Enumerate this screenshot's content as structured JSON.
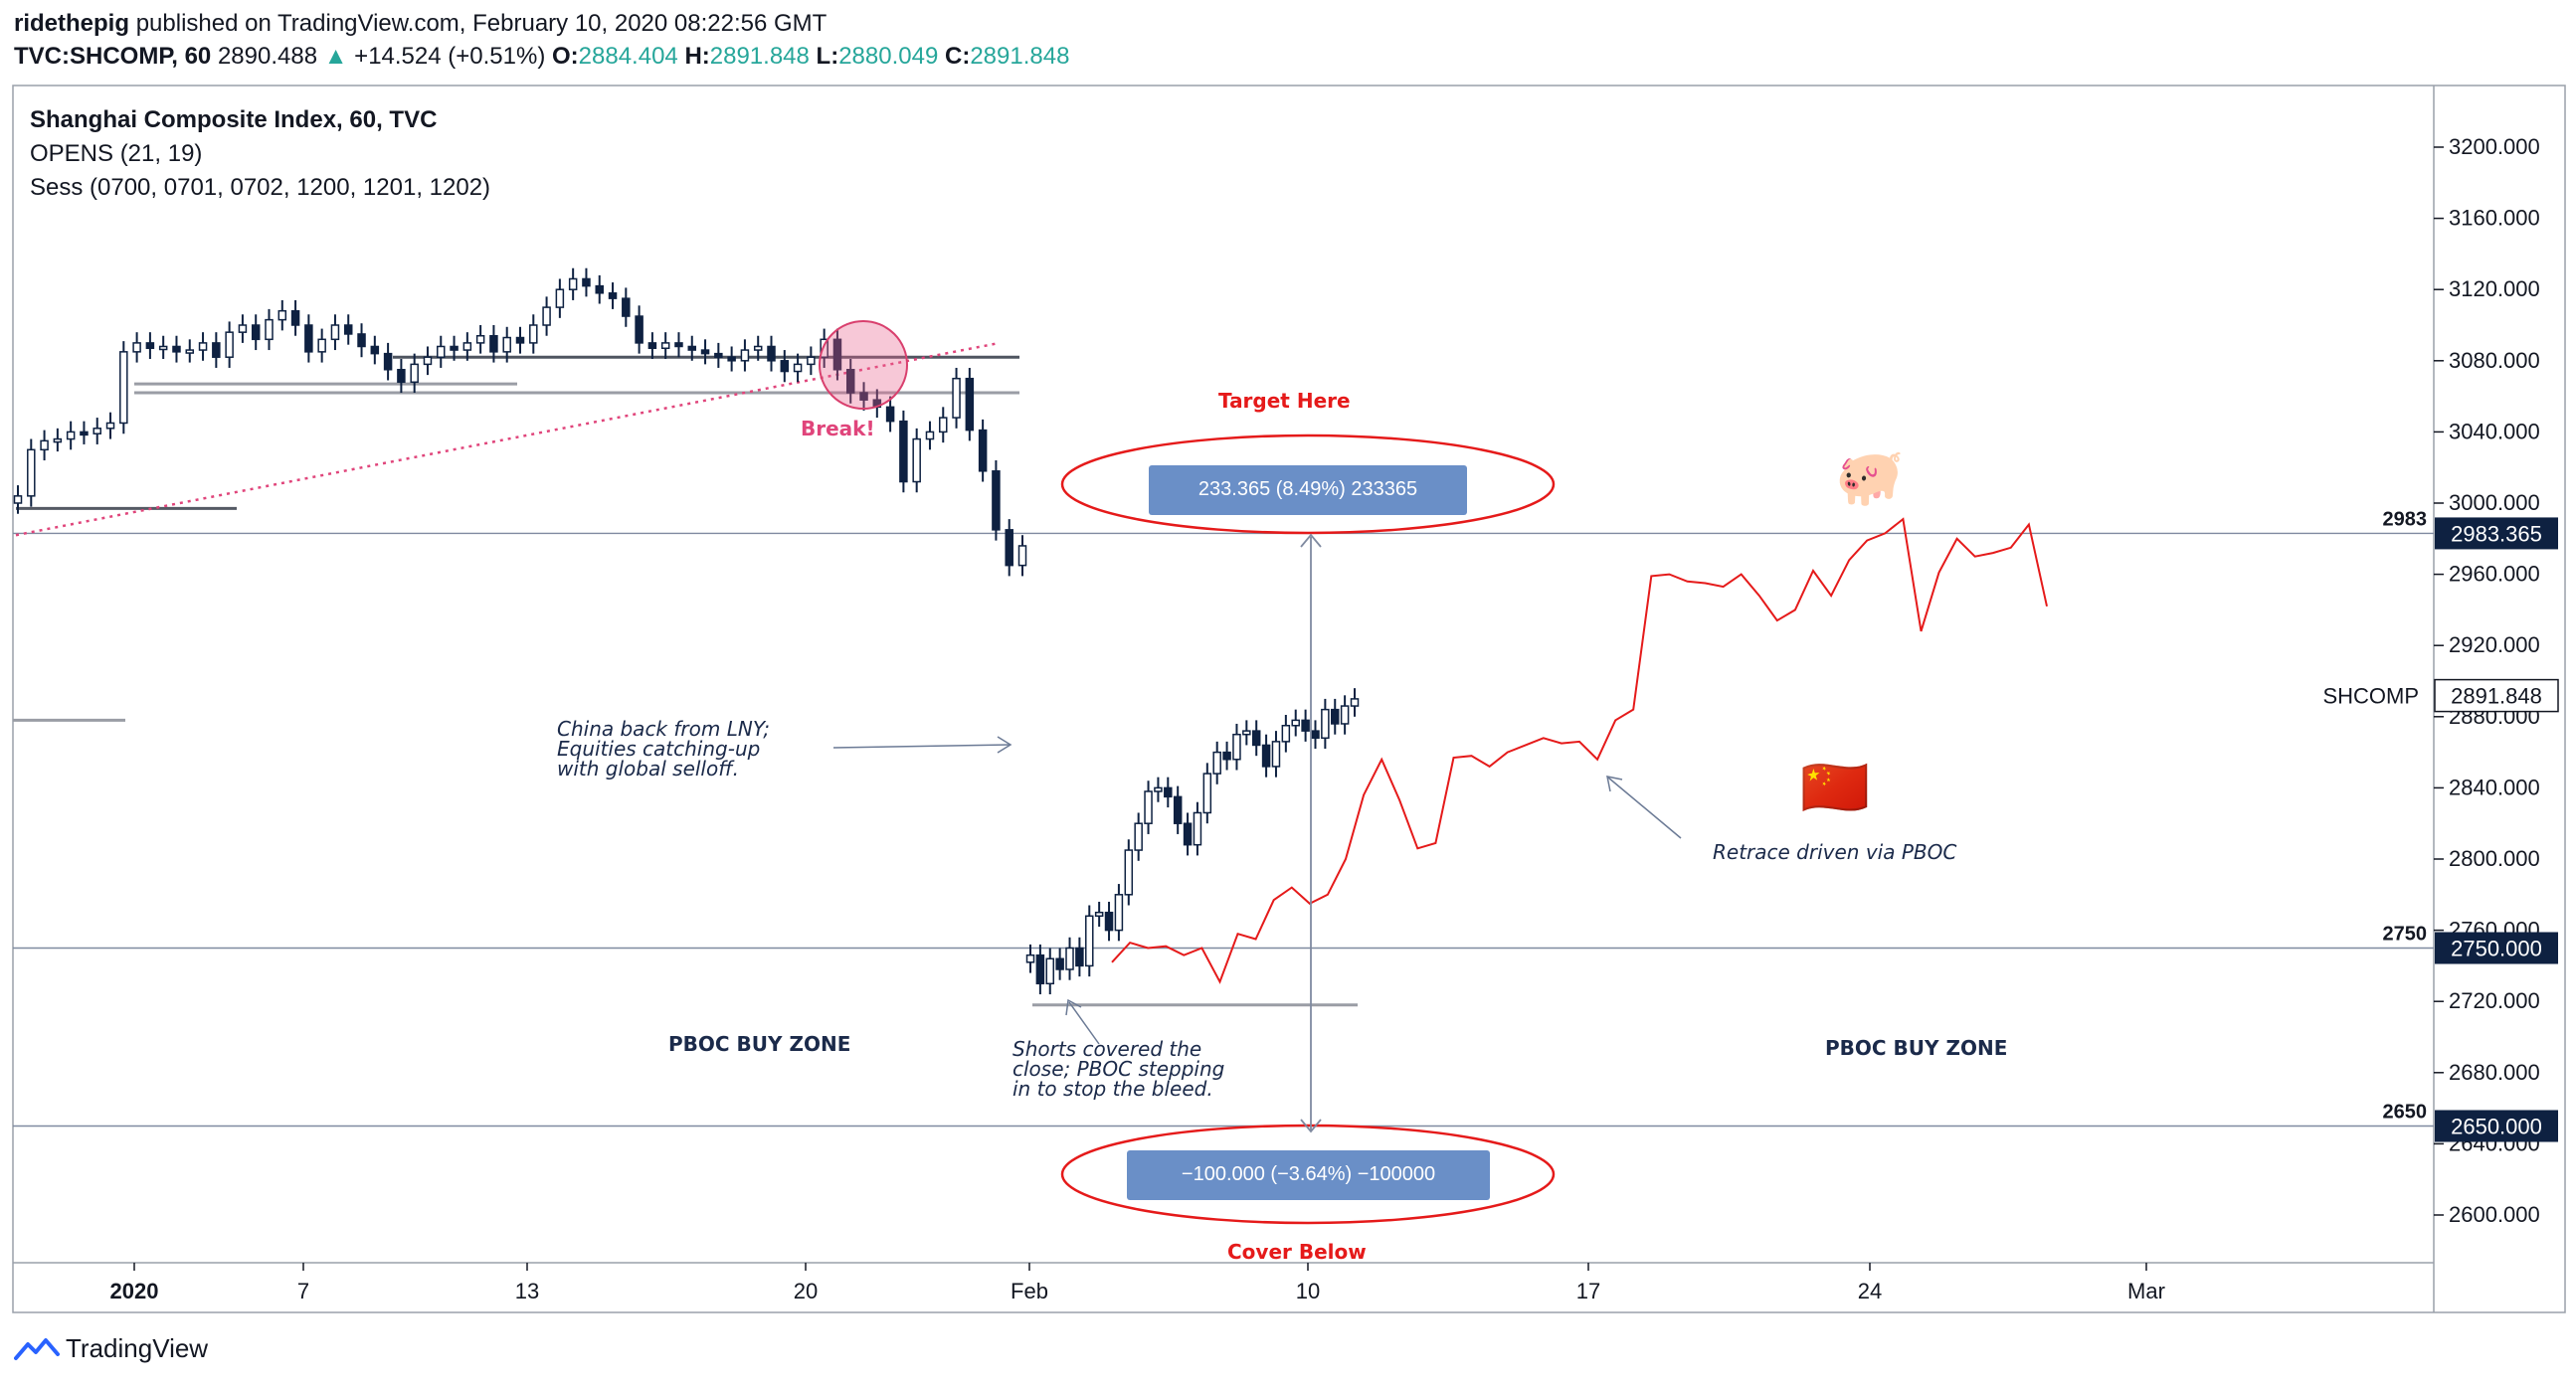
{
  "header": {
    "author": "ridethepig",
    "published_text": "published on TradingView.com, February 10, 2020 08:22:56 GMT",
    "symbol": "TVC:SHCOMP, 60",
    "last": "2890.488",
    "change": "+14.524 (+0.51%)",
    "o_label": "O:",
    "o": "2884.404",
    "h_label": "H:",
    "h": "2891.848",
    "l_label": "L:",
    "l": "2880.049",
    "c_label": "C:",
    "c": "2891.848"
  },
  "legend": {
    "title": "Shanghai Composite Index, 60, TVC",
    "line2": "OPENS (21, 19)",
    "line3": "Sess (0700, 0701, 0702, 1200, 1201, 1202)"
  },
  "annotations": {
    "target_here": "Target Here",
    "cover_below": "Cover Below",
    "break": "Break!",
    "measure_up": "233.365 (8.49%) 233365",
    "measure_down": "−100.000 (−3.64%) −100000",
    "note_lny": [
      "China back from LNY;",
      "Equities catching-up",
      "with global selloff."
    ],
    "note_shorts": [
      "Shorts covered the",
      "close; PBOC stepping",
      "in to stop the bleed."
    ],
    "note_retrace": "Retrace driven via PBOC",
    "zone_left": "PBOC BUY ZONE",
    "zone_right": "PBOC BUY ZONE",
    "pig_emoji": "🐖",
    "flag_emoji": "🇨🇳"
  },
  "footer": {
    "brand": "TradingView"
  },
  "colors": {
    "axis_dark": "#0e2141",
    "projection": "#e51a1a",
    "trendline": "#e0457b",
    "measure_bg": "#6a8fc7",
    "gain": "#26a69a"
  },
  "chart_data": {
    "type": "candlestick",
    "title": "Shanghai Composite Index, 60, TVC",
    "ylim": [
      2570,
      3235
    ],
    "y_ticks": [
      2600,
      2640,
      2680,
      2720,
      2760,
      2800,
      2840,
      2880,
      2920,
      2960,
      3000,
      3040,
      3080,
      3120,
      3160,
      3200
    ],
    "x_tick_labels": [
      "2020",
      "7",
      "13",
      "20",
      "Feb",
      "10",
      "17",
      "24",
      "Mar"
    ],
    "levels": [
      {
        "label": "2983",
        "value": 2983,
        "tag": "2983.365"
      },
      {
        "label": "2750",
        "value": 2750,
        "tag": "2750.000"
      },
      {
        "label": "2650",
        "value": 2650,
        "tag": "2650.000"
      }
    ],
    "last_price": {
      "symbol": "SHCOMP",
      "value": "2891.848"
    },
    "candles_jan": [
      3004,
      3030,
      3035,
      3036,
      3040,
      3039,
      3042,
      3045,
      3085,
      3090,
      3087,
      3088,
      3085,
      3086,
      3090,
      3082,
      3096,
      3100,
      3092,
      3103,
      3108,
      3100,
      3085,
      3092,
      3100,
      3095,
      3088,
      3084,
      3075,
      3068,
      3078,
      3082,
      3088,
      3086,
      3090,
      3094,
      3085,
      3093,
      3090,
      3100,
      3110,
      3120,
      3126,
      3122,
      3118,
      3115,
      3105,
      3090,
      3087,
      3090,
      3088,
      3086,
      3084,
      3082,
      3080,
      3086,
      3088,
      3080,
      3074,
      3078,
      3082,
      3092,
      3075,
      3062,
      3058,
      3054,
      3046,
      3012,
      3036,
      3040,
      3048,
      3070,
      3041,
      3018,
      2985,
      2965,
      2976
    ],
    "candles_feb": [
      2746,
      2730,
      2744,
      2738,
      2750,
      2740,
      2768,
      2770,
      2760,
      2780,
      2805,
      2820,
      2838,
      2840,
      2835,
      2820,
      2808,
      2826,
      2848,
      2860,
      2856,
      2870,
      2872,
      2864,
      2852,
      2866,
      2875,
      2878,
      2872,
      2868,
      2884,
      2876,
      2886,
      2890
    ],
    "projection": [
      2742,
      2753,
      2750,
      2751,
      2746,
      2750,
      2731,
      2758,
      2755,
      2777,
      2784,
      2775,
      2780,
      2800,
      2836,
      2856,
      2833,
      2806,
      2809,
      2857,
      2858,
      2852,
      2860,
      2864,
      2868,
      2865,
      2866,
      2856,
      2878,
      2884,
      2959,
      2960,
      2956,
      2955,
      2953,
      2960,
      2948,
      2934,
      2940,
      2962,
      2948,
      2968,
      2979,
      2983,
      2991,
      2928,
      2961,
      2980,
      2970,
      2972,
      2975,
      2988,
      2942
    ]
  }
}
